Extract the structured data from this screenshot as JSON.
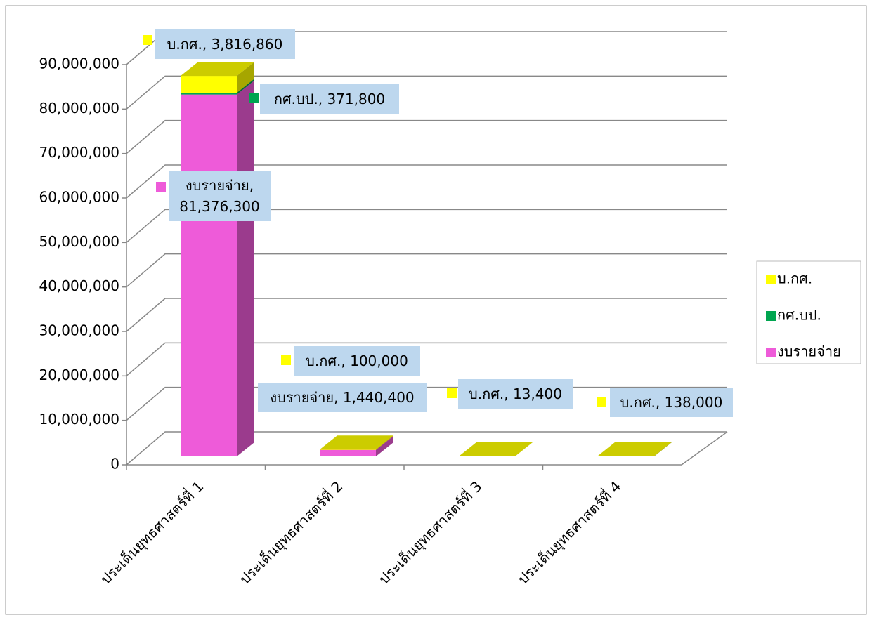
{
  "chart_data": {
    "type": "bar3d_stacked",
    "categories": [
      "ประเด็นยุทธศาสตร์ที่ 1",
      "ประเด็นยุทธศาสตร์ที่ 2",
      "ประเด็นยุทธศาสตร์ที่ 3",
      "ประเด็นยุทธศาสตร์ที่ 4"
    ],
    "series": [
      {
        "name": "งบรายจ่าย",
        "color": "#ee5bd9",
        "values": [
          81376300,
          1440400,
          null,
          null
        ],
        "value_labels": [
          "งบรายจ่าย, 81,376,300",
          "งบรายจ่าย, 1,440,400",
          null,
          null
        ]
      },
      {
        "name": "กศ.บป.",
        "color": "#00a550",
        "values": [
          371800,
          null,
          null,
          null
        ],
        "value_labels": [
          "กศ.บป., 371,800",
          null,
          null,
          null
        ]
      },
      {
        "name": "บ.กศ.",
        "color": "#ffff00",
        "values": [
          3816860,
          100000,
          13400,
          138000
        ],
        "value_labels": [
          "บ.กศ., 3,816,860",
          "บ.กศ., 100,000",
          "บ.กศ., 13,400",
          "บ.กศ., 138,000"
        ]
      }
    ],
    "ylim": [
      0,
      90000000
    ],
    "yticks": [
      0,
      {
        "value": 10000000,
        "label": "10,000,000"
      },
      {
        "value": 20000000,
        "label": "20,000,000"
      },
      {
        "value": 30000000,
        "label": "30,000,000"
      },
      {
        "value": 40000000,
        "label": "40,000,000"
      },
      {
        "value": 50000000,
        "label": "50,000,000"
      },
      {
        "value": 60000000,
        "label": "60,000,000"
      },
      {
        "value": 70000000,
        "label": "70,000,000"
      },
      {
        "value": 80000000,
        "label": "80,000,000"
      },
      {
        "value": 90000000,
        "label": "90,000,000"
      }
    ],
    "grid": true,
    "legend": "right"
  }
}
